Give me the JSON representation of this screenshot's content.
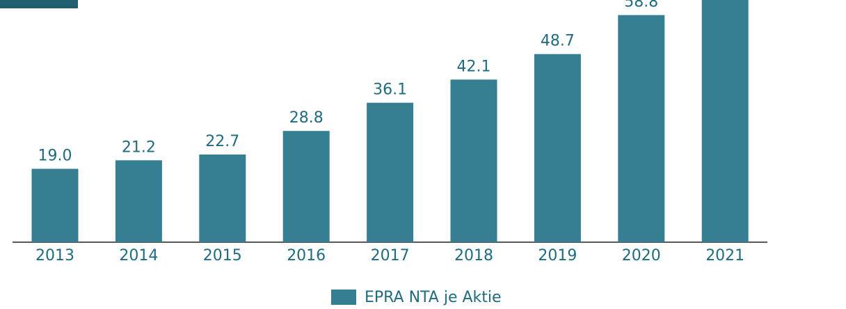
{
  "chart_data": {
    "type": "bar",
    "categories": [
      "2013",
      "2014",
      "2015",
      "2016",
      "2017",
      "2018",
      "2019",
      "2020",
      "2021"
    ],
    "series": [
      {
        "name": "EPRA NTA je Aktie",
        "color": "#367f93",
        "values": [
          19.0,
          21.2,
          22.7,
          28.8,
          36.1,
          42.1,
          48.7,
          58.8,
          65
        ],
        "value_labels": [
          "19.0",
          "21.2",
          "22.7",
          "28.8",
          "36.1",
          "42.1",
          "48.7",
          "58.8",
          null
        ]
      }
    ],
    "ylim": [
      0,
      62.7
    ],
    "legend": "bottom"
  }
}
